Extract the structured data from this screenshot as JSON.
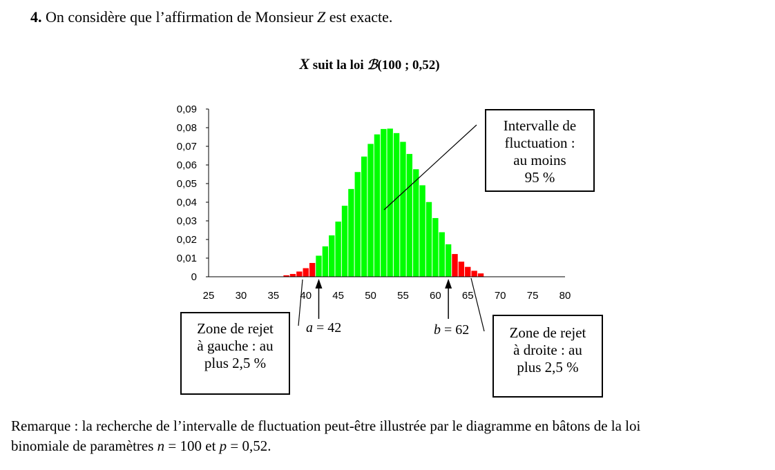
{
  "heading": {
    "number": "4.",
    "text_before": "On considère que l’affirmation de Monsieur ",
    "var": "Z",
    "text_after": " est exacte."
  },
  "chart_title": {
    "var": "X",
    "text": " suit la loi ",
    "law_symbol": "ℬ",
    "params": "(100 ; 0,52)"
  },
  "chart_data": {
    "type": "bar",
    "title": "X suit la loi ℬ(100 ; 0,52)",
    "xlim": [
      25,
      80
    ],
    "ylim": [
      0,
      0.09
    ],
    "x_ticks": [
      25,
      30,
      35,
      40,
      45,
      50,
      55,
      60,
      65,
      70,
      75,
      80
    ],
    "x_tick_labels": [
      "25",
      "30",
      "35",
      "40",
      "45",
      "50",
      "55",
      "60",
      "65",
      "70",
      "75",
      "80"
    ],
    "y_ticks": [
      0,
      0.01,
      0.02,
      0.03,
      0.04,
      0.05,
      0.06,
      0.07,
      0.08,
      0.09
    ],
    "y_tick_labels": [
      "0",
      "0,01",
      "0,02",
      "0,03",
      "0,04",
      "0,05",
      "0,06",
      "0,07",
      "0,08",
      "0,09"
    ],
    "grid": false,
    "x": [
      37,
      38,
      39,
      40,
      41,
      42,
      43,
      44,
      45,
      46,
      47,
      48,
      49,
      50,
      51,
      52,
      53,
      54,
      55,
      56,
      57,
      58,
      59,
      60,
      61,
      62,
      63,
      64,
      65,
      66,
      67
    ],
    "values": [
      0.0008,
      0.0015,
      0.0028,
      0.0046,
      0.0074,
      0.0113,
      0.0163,
      0.0222,
      0.0296,
      0.0381,
      0.0471,
      0.0562,
      0.0645,
      0.0713,
      0.0764,
      0.0793,
      0.0795,
      0.0771,
      0.0724,
      0.0659,
      0.0577,
      0.0491,
      0.0401,
      0.0315,
      0.0239,
      0.0174,
      0.0122,
      0.0081,
      0.0053,
      0.0032,
      0.0018
    ],
    "series": [
      {
        "name": "Zone de rejet à gauche",
        "color": "#ff0000",
        "x_range": [
          37,
          41
        ]
      },
      {
        "name": "Intervalle de fluctuation",
        "color": "#00ff00",
        "x_range": [
          42,
          62
        ]
      },
      {
        "name": "Zone de rejet à droite",
        "color": "#ff0000",
        "x_range": [
          63,
          67
        ]
      }
    ]
  },
  "annotations": {
    "interval_box": [
      "Intervalle de",
      "fluctuation :",
      "au moins",
      "95 %"
    ],
    "left_box": [
      "Zone de rejet",
      "à gauche : au",
      "plus 2,5 %"
    ],
    "right_box": [
      "Zone de rejet",
      "à droite : au",
      "plus 2,5 %"
    ],
    "a_label": {
      "var": "a",
      "text": " = 42"
    },
    "b_label": {
      "var": "b",
      "text": " = 62"
    }
  },
  "remark": {
    "line1": "Remarque : la recherche de l’intervalle de fluctuation peut-être illustrée par le diagramme en bâtons de la loi",
    "line2_a": "binomiale de paramètres ",
    "n_var": "n",
    "n_text": " = 100 et ",
    "p_var": "p",
    "p_text": " = 0,52."
  },
  "colors": {
    "green": "#00ff00",
    "red": "#ff0000"
  }
}
